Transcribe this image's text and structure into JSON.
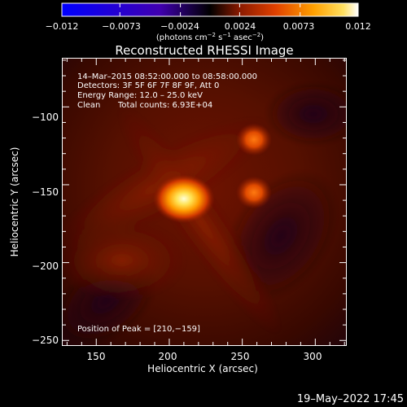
{
  "chart_data": {
    "type": "heatmap",
    "title": "Reconstructed RHESSI Image",
    "xlabel": "Heliocentric X (arcsec)",
    "ylabel": "Heliocentric Y (arcsec)",
    "xlim": [
      127,
      321
    ],
    "ylim": [
      -253,
      -69
    ],
    "x_ticks": [
      150,
      200,
      250,
      300
    ],
    "y_ticks": [
      -100,
      -150,
      -200,
      -250
    ],
    "colorbar": {
      "range": [
        -0.012,
        0.012
      ],
      "ticks": [
        "−0.012",
        "−0.0073",
        "−0.0024",
        "0.0024",
        "0.0073",
        "0.012"
      ],
      "unit_base": "(photons cm",
      "unit_exp1": "−2",
      "unit_mid": " s",
      "unit_exp2": "−1",
      "unit_end": " asec",
      "unit_exp3": "−2",
      "unit_close": ")"
    },
    "annotations": {
      "time_range": "14–Mar–2015 08:52:00.000 to 08:58:00.000",
      "detectors": "Detectors: 3F 5F 6F 7F 8F 9F, Att 0",
      "energy": "Energy Range: 12.0 – 25.0 keV",
      "clean": "Clean",
      "counts": "Total counts: 6.93E+04",
      "peak": "Position of Peak = [210,−159]"
    },
    "sources": [
      {
        "x": 210,
        "y": -159,
        "peak": 0.012
      },
      {
        "x": 258,
        "y": -155,
        "peak": 0.0073
      },
      {
        "x": 258,
        "y": -121,
        "peak": 0.0065
      }
    ],
    "timestamp": "19–May–2022 17:45"
  }
}
